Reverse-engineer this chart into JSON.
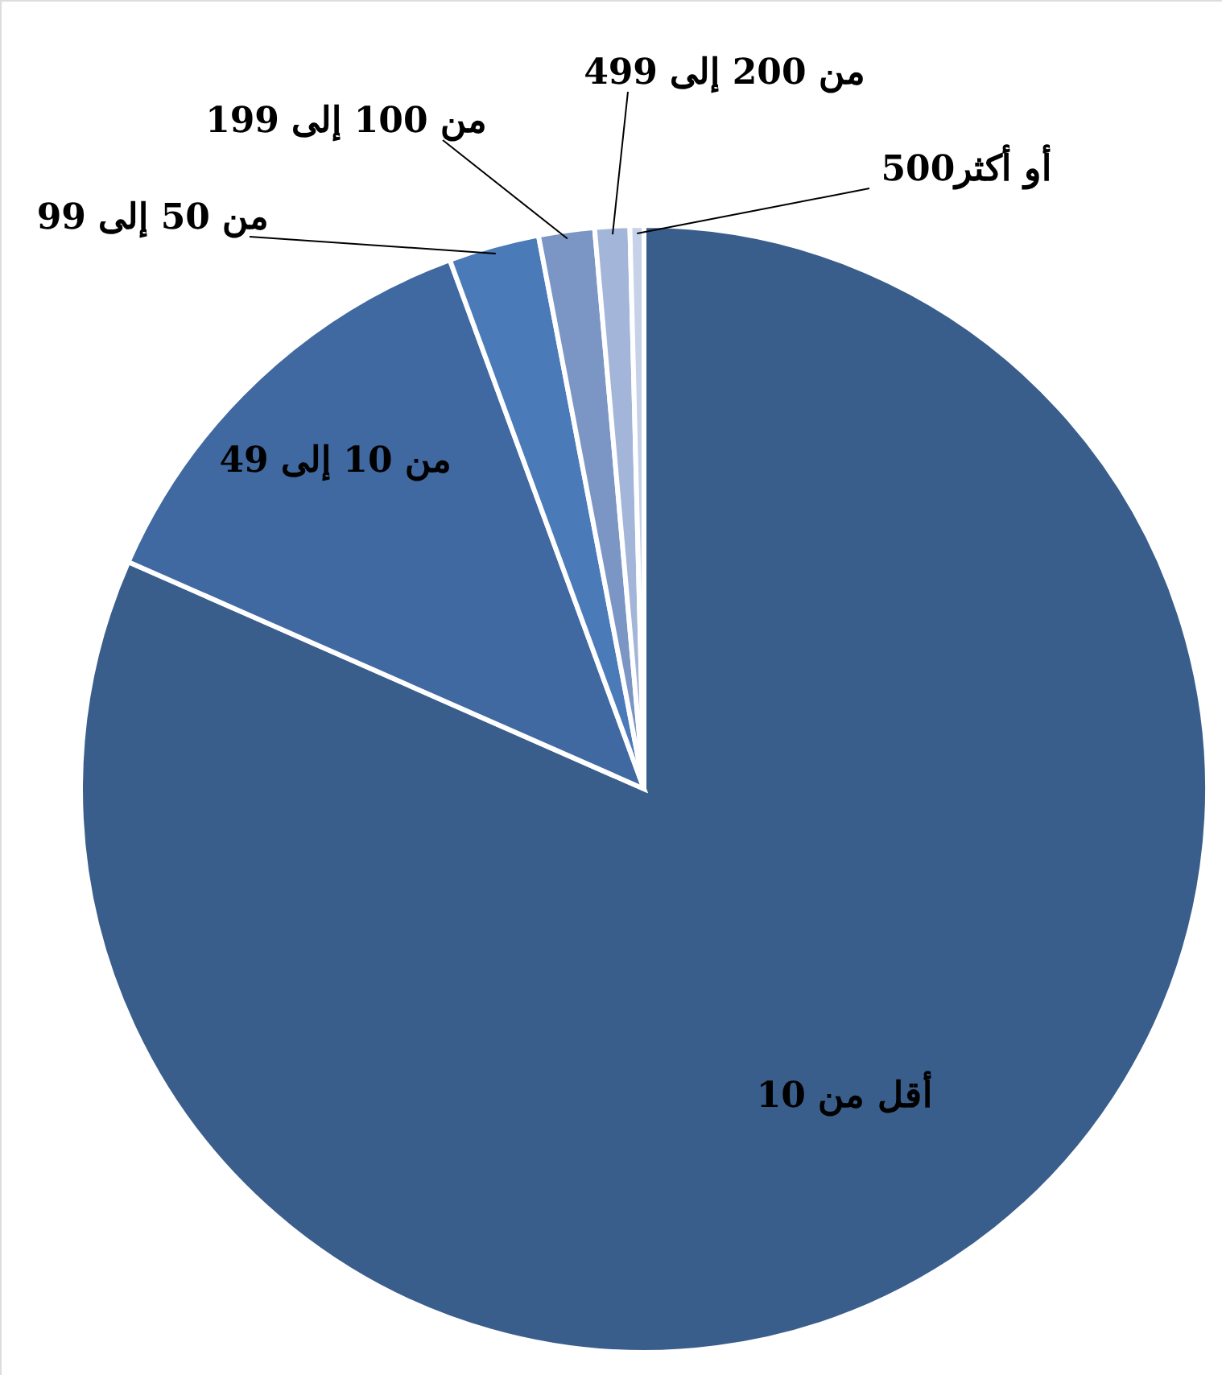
{
  "chart_data": {
    "type": "pie",
    "categories": [
      "أقل من 10",
      "من 10 إلى 49",
      "من 50 إلى 99",
      "من 100 إلى 199",
      "من 200 إلى 499",
      "500أو أكثر"
    ],
    "values": [
      81.6,
      12.8,
      2.6,
      1.6,
      1.0,
      0.4
    ],
    "colors": [
      "#3a5e8c",
      "#4169a1",
      "#4a7ab8",
      "#7b96c4",
      "#a3b5d8",
      "#c7d2e8"
    ]
  }
}
